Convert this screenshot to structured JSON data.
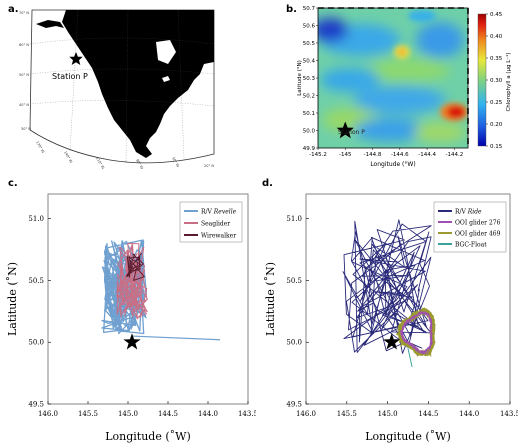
{
  "panels": {
    "a": {
      "label": "a.",
      "station_label": "Station P",
      "lat_labels": [
        "70° N",
        "60° N",
        "50° N",
        "40° N",
        "30° N",
        "20° N"
      ],
      "lon_labels": [
        "170° W",
        "140° W",
        "110° W",
        "80° W",
        "50° W"
      ]
    },
    "b": {
      "label": "b.",
      "station_label": "Station P",
      "colorbar_ticks": [
        "0.45",
        "0.40",
        "0.35",
        "0.30",
        "0.25",
        "0.20",
        "0.15"
      ],
      "colors": {
        "high": "#b30000",
        "mid": "#66cc66",
        "low": "#1a1aa0"
      }
    },
    "c": {
      "label": "c."
    },
    "d": {
      "label": "d."
    }
  },
  "chart_data": [
    {
      "type": "heatmap",
      "panel": "b",
      "title": "",
      "xlabel": "Longitude (°W)",
      "ylabel": "Latitude (°N)",
      "colorbar_label": "Chlorophyll a (μg L⁻¹)",
      "xlim": [
        -145.2,
        -144.1
      ],
      "ylim": [
        49.9,
        50.7
      ],
      "colorbar_range": [
        0.15,
        0.45
      ],
      "x_ticks": [
        "-145.2",
        "-145",
        "-144.8",
        "-144.6",
        "-144.4",
        "-144.2"
      ],
      "y_ticks": [
        "50.7",
        "50.6",
        "50.5",
        "50.4",
        "50.3",
        "50.2",
        "50.1",
        "50.0",
        "49.9"
      ],
      "station": {
        "x": -145.0,
        "y": 50.0,
        "label": "Station P"
      }
    },
    {
      "type": "line",
      "panel": "c",
      "xlabel": "Longitude (˚W)",
      "ylabel": "Latitude (˚N)",
      "xlim": [
        146.0,
        143.5
      ],
      "ylim": [
        49.5,
        51.2
      ],
      "x_ticks": [
        "146.0",
        "145.5",
        "145.0",
        "144.5",
        "144.0",
        "143.5"
      ],
      "y_ticks": [
        "51.0",
        "50.5",
        "50.0",
        "49.5"
      ],
      "series": [
        {
          "name": "R/V Revelle",
          "color": "#6fa0d0"
        },
        {
          "name": "Seaglider",
          "color": "#c86f86"
        },
        {
          "name": "Wirewalker",
          "color": "#5a1a2e"
        }
      ],
      "station": {
        "x": 144.95,
        "y": 50.0
      }
    },
    {
      "type": "line",
      "panel": "d",
      "xlabel": "Longitude (˚W)",
      "ylabel": "Latitude (˚N)",
      "xlim": [
        146.0,
        143.5
      ],
      "ylim": [
        49.5,
        51.2
      ],
      "x_ticks": [
        "146.0",
        "145.5",
        "145.0",
        "144.5",
        "144.0",
        "143.5"
      ],
      "y_ticks": [
        "51.0",
        "50.5",
        "50.0",
        "49.5"
      ],
      "series": [
        {
          "name": "R/V Ride",
          "color": "#2a2a7a"
        },
        {
          "name": "OOI glider 276",
          "color": "#a050b0"
        },
        {
          "name": "OOI glider 469",
          "color": "#9a9a30"
        },
        {
          "name": "BGC-Float",
          "color": "#3aa39a"
        }
      ],
      "station": {
        "x": 144.95,
        "y": 50.0
      }
    }
  ]
}
